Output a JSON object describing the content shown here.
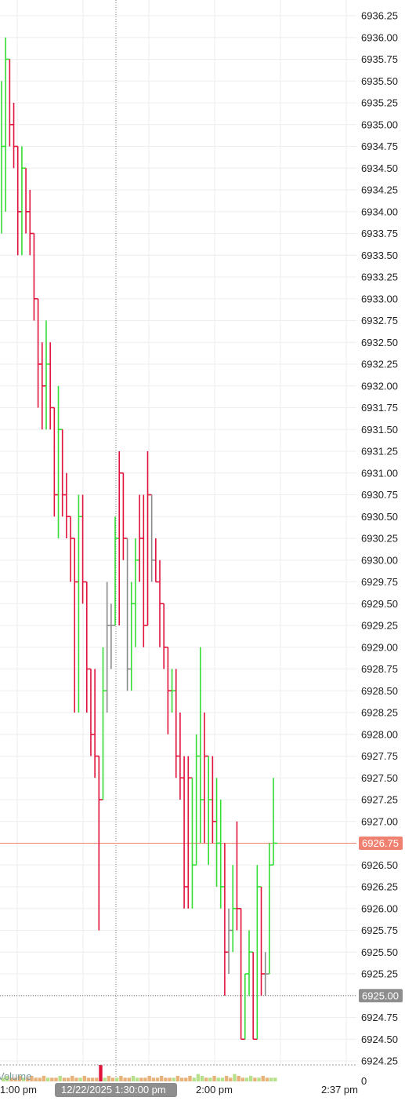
{
  "chart_data": {
    "type": "ohlc-step",
    "y_axis": {
      "min": 6924.25,
      "max": 6936.25,
      "step": 0.25,
      "ticks": [
        "6936.25",
        "6936.00",
        "6935.75",
        "6935.50",
        "6935.25",
        "6935.00",
        "6934.75",
        "6934.50",
        "6934.25",
        "6934.00",
        "6933.75",
        "6933.50",
        "6933.25",
        "6933.00",
        "6932.75",
        "6932.50",
        "6932.25",
        "6932.00",
        "6931.75",
        "6931.50",
        "6931.25",
        "6931.00",
        "6930.75",
        "6930.50",
        "6930.25",
        "6930.00",
        "6929.75",
        "6929.50",
        "6929.25",
        "6929.00",
        "6928.75",
        "6928.50",
        "6928.25",
        "6928.00",
        "6927.75",
        "6927.50",
        "6927.25",
        "6927.00",
        "6926.75",
        "6926.50",
        "6926.25",
        "6926.00",
        "6925.75",
        "6925.50",
        "6925.25",
        "6925.00",
        "6924.75",
        "6924.50",
        "6924.25"
      ],
      "grid": true
    },
    "x_axis": {
      "labels": [
        "1:00 pm",
        "2:00 pm",
        "2:37 pm"
      ],
      "crosshair_label": "12/22/2025 1:30:00 pm",
      "volume_tick_label": "0"
    },
    "last_price": {
      "value": 6926.75,
      "label": "6926.75",
      "color": "#f08070"
    },
    "crosshair_price": {
      "value": 6925.0,
      "label": "6925.00"
    },
    "volume_label": "Volume",
    "colors": {
      "up": "#33dd33",
      "down": "#e0123a",
      "neutral": "#8a8a8a",
      "grid": "#eeeeee",
      "label_bg": "#8e8e8e"
    },
    "bars": [
      {
        "o": 6934.25,
        "h": 6935.5,
        "l": 6933.75,
        "c": 6934.75,
        "d": "up"
      },
      {
        "o": 6934.75,
        "h": 6936.0,
        "l": 6934.0,
        "c": 6935.75,
        "d": "up"
      },
      {
        "o": 6935.75,
        "h": 6935.75,
        "l": 6934.75,
        "c": 6935.0,
        "d": "down"
      },
      {
        "o": 6935.0,
        "h": 6935.25,
        "l": 6934.5,
        "c": 6934.75,
        "d": "down"
      },
      {
        "o": 6934.75,
        "h": 6934.75,
        "l": 6933.5,
        "c": 6934.0,
        "d": "down"
      },
      {
        "o": 6934.0,
        "h": 6934.75,
        "l": 6933.5,
        "c": 6934.5,
        "d": "up"
      },
      {
        "o": 6934.5,
        "h": 6934.5,
        "l": 6933.75,
        "c": 6934.0,
        "d": "down"
      },
      {
        "o": 6934.0,
        "h": 6934.25,
        "l": 6933.5,
        "c": 6933.75,
        "d": "down"
      },
      {
        "o": 6933.75,
        "h": 6933.75,
        "l": 6932.75,
        "c": 6933.0,
        "d": "down"
      },
      {
        "o": 6933.0,
        "h": 6933.0,
        "l": 6931.75,
        "c": 6932.25,
        "d": "down"
      },
      {
        "o": 6932.25,
        "h": 6932.5,
        "l": 6931.5,
        "c": 6932.0,
        "d": "down"
      },
      {
        "o": 6932.0,
        "h": 6932.75,
        "l": 6931.5,
        "c": 6932.25,
        "d": "up"
      },
      {
        "o": 6932.25,
        "h": 6932.5,
        "l": 6931.5,
        "c": 6931.75,
        "d": "down"
      },
      {
        "o": 6931.75,
        "h": 6931.75,
        "l": 6930.5,
        "c": 6930.75,
        "d": "down"
      },
      {
        "o": 6930.75,
        "h": 6932.0,
        "l": 6930.25,
        "c": 6931.5,
        "d": "up"
      },
      {
        "o": 6931.5,
        "h": 6931.5,
        "l": 6930.5,
        "c": 6930.75,
        "d": "down"
      },
      {
        "o": 6930.75,
        "h": 6931.0,
        "l": 6930.25,
        "c": 6930.5,
        "d": "down"
      },
      {
        "o": 6930.5,
        "h": 6930.5,
        "l": 6929.75,
        "c": 6930.25,
        "d": "down"
      },
      {
        "o": 6930.25,
        "h": 6930.25,
        "l": 6928.25,
        "c": 6929.75,
        "d": "down"
      },
      {
        "o": 6929.75,
        "h": 6930.75,
        "l": 6928.25,
        "c": 6930.5,
        "d": "up"
      },
      {
        "o": 6930.5,
        "h": 6930.75,
        "l": 6929.5,
        "c": 6929.75,
        "d": "down"
      },
      {
        "o": 6929.75,
        "h": 6929.75,
        "l": 6928.25,
        "c": 6928.75,
        "d": "down"
      },
      {
        "o": 6928.75,
        "h": 6928.75,
        "l": 6927.75,
        "c": 6928.0,
        "d": "down"
      },
      {
        "o": 6928.0,
        "h": 6928.75,
        "l": 6927.5,
        "c": 6927.75,
        "d": "down"
      },
      {
        "o": 6927.75,
        "h": 6927.75,
        "l": 6925.75,
        "c": 6927.25,
        "d": "down"
      },
      {
        "o": 6927.25,
        "h": 6929.0,
        "l": 6927.25,
        "c": 6928.5,
        "d": "up"
      },
      {
        "o": 6928.5,
        "h": 6929.75,
        "l": 6928.25,
        "c": 6929.25,
        "d": "neutral"
      },
      {
        "o": 6929.25,
        "h": 6929.5,
        "l": 6928.75,
        "c": 6929.25,
        "d": "neutral"
      },
      {
        "o": 6929.25,
        "h": 6930.5,
        "l": 6929.25,
        "c": 6930.25,
        "d": "up"
      },
      {
        "o": 6930.25,
        "h": 6931.25,
        "l": 6929.25,
        "c": 6931.0,
        "d": "down"
      },
      {
        "o": 6931.0,
        "h": 6931.0,
        "l": 6930.0,
        "c": 6930.25,
        "d": "down"
      },
      {
        "o": 6930.25,
        "h": 6930.25,
        "l": 6928.5,
        "c": 6928.75,
        "d": "neutral"
      },
      {
        "o": 6928.75,
        "h": 6929.75,
        "l": 6928.5,
        "c": 6929.5,
        "d": "up"
      },
      {
        "o": 6929.5,
        "h": 6930.25,
        "l": 6929.0,
        "c": 6930.0,
        "d": "up"
      },
      {
        "o": 6930.0,
        "h": 6930.75,
        "l": 6929.75,
        "c": 6930.25,
        "d": "down"
      },
      {
        "o": 6930.25,
        "h": 6930.75,
        "l": 6929.0,
        "c": 6929.25,
        "d": "down"
      },
      {
        "o": 6929.25,
        "h": 6931.25,
        "l": 6929.25,
        "c": 6930.75,
        "d": "down"
      },
      {
        "o": 6930.75,
        "h": 6930.75,
        "l": 6929.75,
        "c": 6930.0,
        "d": "neutral"
      },
      {
        "o": 6930.0,
        "h": 6930.25,
        "l": 6929.75,
        "c": 6929.75,
        "d": "down"
      },
      {
        "o": 6929.75,
        "h": 6930.0,
        "l": 6929.0,
        "c": 6929.5,
        "d": "down"
      },
      {
        "o": 6929.5,
        "h": 6929.5,
        "l": 6928.75,
        "c": 6929.0,
        "d": "down"
      },
      {
        "o": 6929.0,
        "h": 6929.0,
        "l": 6928.0,
        "c": 6928.5,
        "d": "down"
      },
      {
        "o": 6928.5,
        "h": 6928.75,
        "l": 6928.25,
        "c": 6928.5,
        "d": "up"
      },
      {
        "o": 6928.5,
        "h": 6928.75,
        "l": 6927.5,
        "c": 6927.75,
        "d": "down"
      },
      {
        "o": 6927.75,
        "h": 6928.25,
        "l": 6927.25,
        "c": 6927.5,
        "d": "down"
      },
      {
        "o": 6927.5,
        "h": 6927.75,
        "l": 6926.0,
        "c": 6926.25,
        "d": "down"
      },
      {
        "o": 6926.25,
        "h": 6927.75,
        "l": 6926.0,
        "c": 6927.5,
        "d": "down"
      },
      {
        "o": 6927.5,
        "h": 6927.5,
        "l": 6926.0,
        "c": 6926.5,
        "d": "up"
      },
      {
        "o": 6926.5,
        "h": 6928.0,
        "l": 6926.5,
        "c": 6927.75,
        "d": "up"
      },
      {
        "o": 6927.75,
        "h": 6929.0,
        "l": 6926.75,
        "c": 6927.25,
        "d": "up"
      },
      {
        "o": 6927.25,
        "h": 6928.25,
        "l": 6926.75,
        "c": 6927.75,
        "d": "down"
      },
      {
        "o": 6927.75,
        "h": 6927.75,
        "l": 6926.5,
        "c": 6927.25,
        "d": "up"
      },
      {
        "o": 6927.25,
        "h": 6927.75,
        "l": 6926.75,
        "c": 6927.0,
        "d": "down"
      },
      {
        "o": 6927.0,
        "h": 6927.5,
        "l": 6926.25,
        "c": 6926.75,
        "d": "up"
      },
      {
        "o": 6926.75,
        "h": 6927.25,
        "l": 6926.0,
        "c": 6926.25,
        "d": "up"
      },
      {
        "o": 6926.25,
        "h": 6926.75,
        "l": 6925.0,
        "c": 6925.5,
        "d": "down"
      },
      {
        "o": 6925.5,
        "h": 6926.0,
        "l": 6925.25,
        "c": 6925.75,
        "d": "neutral"
      },
      {
        "o": 6925.75,
        "h": 6926.5,
        "l": 6925.5,
        "c": 6926.0,
        "d": "up"
      },
      {
        "o": 6926.0,
        "h": 6927.0,
        "l": 6925.75,
        "c": 6926.0,
        "d": "down"
      },
      {
        "o": 6926.0,
        "h": 6926.0,
        "l": 6924.5,
        "c": 6924.5,
        "d": "down"
      },
      {
        "o": 6924.5,
        "h": 6925.25,
        "l": 6924.5,
        "c": 6925.25,
        "d": "up"
      },
      {
        "o": 6925.25,
        "h": 6925.75,
        "l": 6925.0,
        "c": 6925.5,
        "d": "up"
      },
      {
        "o": 6925.5,
        "h": 6925.5,
        "l": 6924.5,
        "c": 6924.5,
        "d": "down"
      },
      {
        "o": 6924.5,
        "h": 6926.5,
        "l": 6924.5,
        "c": 6926.25,
        "d": "up"
      },
      {
        "o": 6926.25,
        "h": 6926.25,
        "l": 6925.0,
        "c": 6925.25,
        "d": "down"
      },
      {
        "o": 6925.25,
        "h": 6925.5,
        "l": 6925.0,
        "c": 6925.25,
        "d": "neutral"
      },
      {
        "o": 6925.25,
        "h": 6926.75,
        "l": 6925.25,
        "c": 6926.5,
        "d": "up"
      },
      {
        "o": 6926.5,
        "h": 6927.5,
        "l": 6926.5,
        "c": 6926.75,
        "d": "up"
      }
    ],
    "volume": [
      2,
      3,
      2,
      2,
      3,
      2,
      2,
      3,
      2,
      2,
      3,
      2,
      2,
      2,
      3,
      2,
      2,
      3,
      2,
      2,
      3,
      2,
      2,
      2,
      9,
      2,
      3,
      2,
      2,
      3,
      2,
      2,
      3,
      2,
      2,
      2,
      3,
      2,
      2,
      3,
      2,
      2,
      2,
      3,
      2,
      2,
      3,
      2,
      4,
      3,
      2,
      2,
      3,
      2,
      2,
      3,
      2,
      4,
      3,
      2,
      2,
      3,
      2,
      2,
      3,
      2,
      2,
      2
    ]
  }
}
